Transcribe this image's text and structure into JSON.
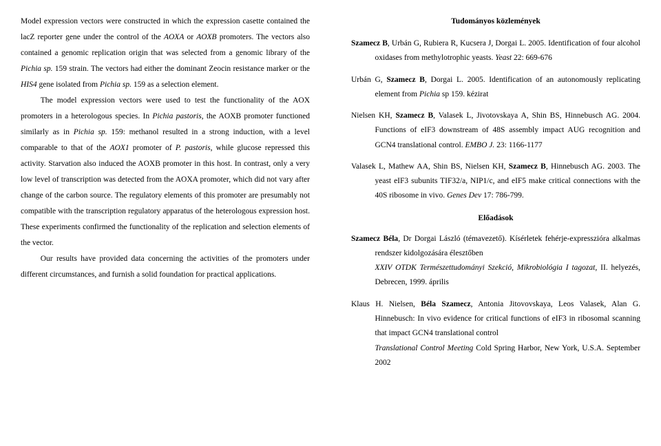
{
  "left": {
    "p1": "Model expression vectors were constructed in which the expression casette contained the lacZ reporter gene under the control of the ",
    "p1_i1": "AOXA",
    "p1_mid": " or ",
    "p1_i2": "AOXB",
    "p1_after": " promoters. The vectors also contained a genomic replication origin that was selected from a genomic library of the ",
    "p1_i3": "Pichia sp.",
    "p1_tail": " 159 strain. The vectors had either the dominant Zeocin resistance marker or the ",
    "p1_i4": "HIS4",
    "p1_tail2": " gene isolated from ",
    "p1_i5": "Pichia sp.",
    "p1_tail3": " 159 as a selection element.",
    "p2a": "The model expression vectors were used to test the functionality of the AOX promoters in a heterologous species. In ",
    "p2_i1": "Pichia pastoris",
    "p2b": ", the AOXB promoter functioned similarly as in ",
    "p2_i2": "Pichia sp.",
    "p2c": " 159: methanol resulted in a strong induction, with a level comparable to that of  the ",
    "p2_i3": "AOX1",
    "p2d": " promoter of ",
    "p2_i4": "P. pastoris",
    "p2e": ", while glucose repressed this activity. Starvation also induced the AOXB promoter in this host. In contrast, only a very low level of transcription was detected from the AOXA promoter, which did not vary after change of the carbon source. The regulatory elements of this promoter are presumably not compatible with the transcription regulatory apparatus of the heterologous expression host. These experiments confirmed the functionality of the replication and selection elements of the vector.",
    "p3": "Our results have provided data concerning the activities of the promoters under different circumstances, and furnish a solid foundation for practical applications."
  },
  "right": {
    "head1": "Tudományos közlemények",
    "ref1_b": "Szamecz B",
    "ref1_rest": ", Urbán G, Rubiera R, Kucsera J, Dorgai L. 2005. Identification of four alcohol oxidases from methylotrophic yeasts. ",
    "ref1_i": "Yeast",
    "ref1_tail": " 22: 669-676",
    "ref2_a": "Urbán G, ",
    "ref2_b": "Szamecz B",
    "ref2_c": ", Dorgai L. 2005. Identification of an autonomously replicating element from ",
    "ref2_i": "Pichia",
    "ref2_d": " sp 159. kézirat",
    "ref3_a": "Nielsen KH, ",
    "ref3_b": "Szamecz B",
    "ref3_c": ", Valasek L, Jivotovskaya A, Shin BS, Hinnebusch AG. 2004. Functions of eIF3 downstream of 48S assembly impact AUG recognition and GCN4 translational control. ",
    "ref3_i": "EMBO J.",
    "ref3_d": " 23: 1166-1177",
    "ref4_a": "Valasek L, Mathew AA, Shin BS, Nielsen KH, ",
    "ref4_b": "Szamecz B",
    "ref4_c": ", Hinnebusch AG. 2003. The yeast eIF3 subunits TIF32/a, NIP1/c, and eIF5 make critical connections with the 40S ribosome in vivo. ",
    "ref4_i": "Genes Dev",
    "ref4_d": " 17: 786-799.",
    "head2": "Előadások",
    "ref5_b": "Szamecz Béla",
    "ref5_a": ", Dr Dorgai László (témavezető). Kísérletek fehérje-expresszióra alkalmas rendszer kidolgozására élesztőben",
    "ref5_i": "XXIV OTDK Természettudományi Szekció, Mikrobiológia I tagozat,",
    "ref5_c": " II. helyezés, Debrecen, 1999. április",
    "ref6_a": "Klaus H. Nielsen, ",
    "ref6_b": "Béla Szamecz",
    "ref6_c": ", Antonia Jitovovskaya, Leos Valasek, Alan G. Hinnebusch: In vivo evidence for critical functions of eIF3 in ribosomal scanning that impact GCN4 translational control",
    "ref6_i": "Translational Control Meeting",
    "ref6_d": " Cold Spring Harbor, New York, U.S.A. September 2002"
  }
}
